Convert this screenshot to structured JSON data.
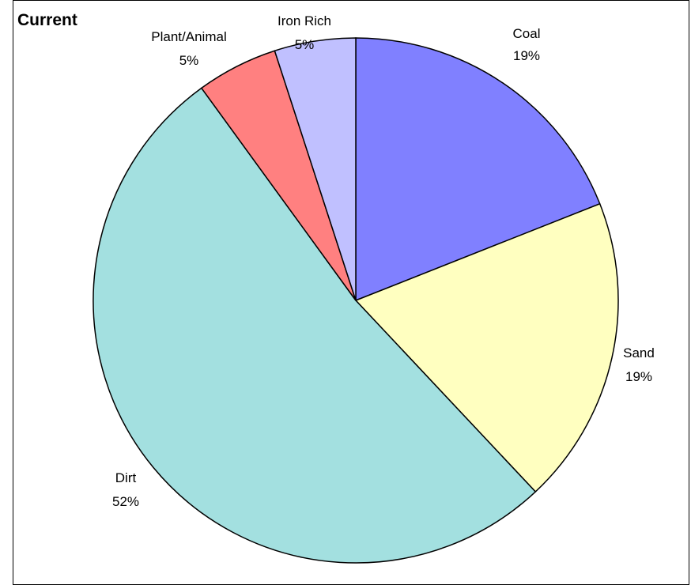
{
  "chart_data": {
    "type": "pie",
    "title": "Current",
    "categories": [
      "Coal",
      "Sand",
      "Dirt",
      "Plant/Animal",
      "Iron Rich"
    ],
    "values": [
      19,
      19,
      52,
      5,
      5
    ],
    "labels": [
      "19%",
      "19%",
      "52%",
      "5%",
      "5%"
    ],
    "colors": [
      "#8080ff",
      "#ffffc0",
      "#a3e0e0",
      "#ff8080",
      "#c0c0ff"
    ],
    "legend": "none"
  }
}
